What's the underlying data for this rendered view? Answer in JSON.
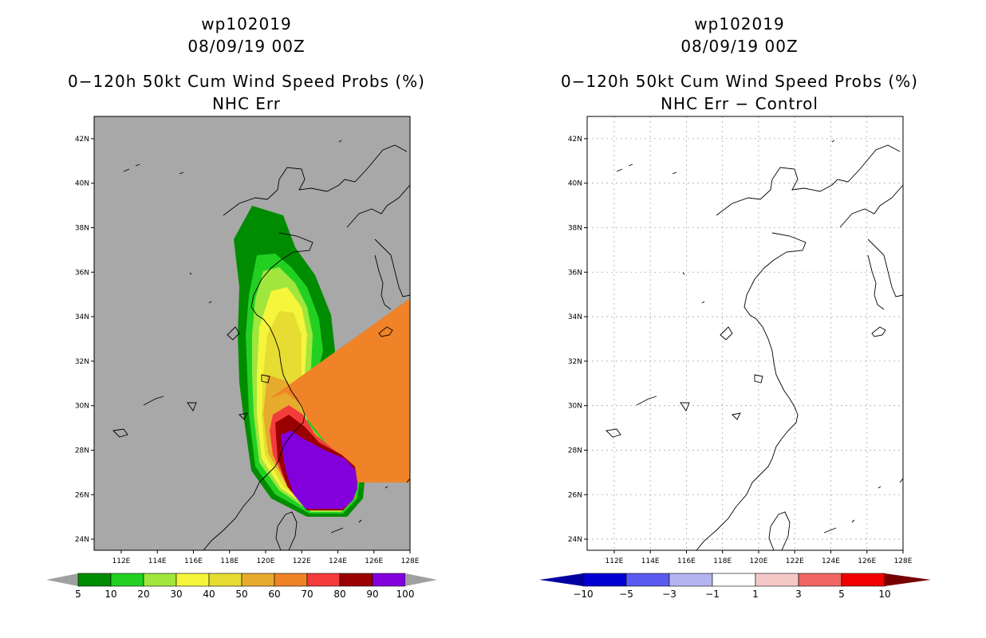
{
  "panels": [
    {
      "storm_id": "wp102019",
      "datetime": "08/09/19 00Z",
      "product": "0−120h 50kt Cum Wind Speed Probs (%)",
      "subtitle": "NHC Err",
      "lat_labels": [
        "42N",
        "40N",
        "38N",
        "36N",
        "34N",
        "32N",
        "30N",
        "28N",
        "26N",
        "24N"
      ],
      "lon_labels": [
        "112E",
        "114E",
        "116E",
        "118E",
        "120E",
        "122E",
        "124E",
        "126E",
        "128E"
      ],
      "colorbar": {
        "labels": [
          "5",
          "10",
          "20",
          "30",
          "40",
          "50",
          "60",
          "70",
          "80",
          "90",
          "100"
        ],
        "colors": [
          "#008c00",
          "#22d022",
          "#a0e63c",
          "#f5f53c",
          "#e6dc32",
          "#e6aa2d",
          "#f08228",
          "#f53c3c",
          "#9b0000",
          "#8200dc"
        ],
        "end_color": "#a0a0a0"
      },
      "background": "#a8a8a8"
    },
    {
      "storm_id": "wp102019",
      "datetime": "08/09/19 00Z",
      "product": "0−120h 50kt Cum Wind Speed Probs (%)",
      "subtitle": "NHC Err − Control",
      "lat_labels": [
        "42N",
        "40N",
        "38N",
        "36N",
        "34N",
        "32N",
        "30N",
        "28N",
        "26N",
        "24N"
      ],
      "lon_labels": [
        "112E",
        "114E",
        "116E",
        "118E",
        "120E",
        "122E",
        "124E",
        "126E",
        "128E"
      ],
      "colorbar": {
        "labels": [
          "−10",
          "−5",
          "−3",
          "−1",
          "1",
          "3",
          "5",
          "10"
        ],
        "colors": [
          "#0000d2",
          "#5a5af0",
          "#b4b4f0",
          "#ffffff",
          "#f5c8c8",
          "#f06464",
          "#f00000"
        ],
        "end_left": "#0000a0",
        "end_right": "#780000"
      },
      "background": "#ffffff"
    }
  ]
}
